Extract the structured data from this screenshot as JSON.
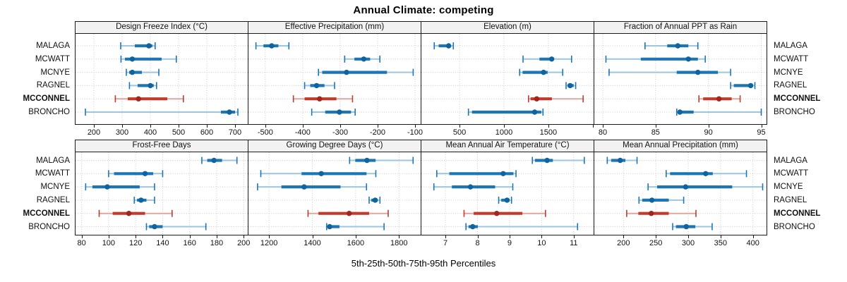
{
  "chart_data": {
    "type": "dotplot_percentile_intervals",
    "title": "Annual Climate: competing",
    "caption": "5th-25th-50th-75th-95th Percentiles",
    "stations": [
      "MALAGA",
      "MCWATT",
      "MCNYE",
      "RAGNEL",
      "MCCONNEL",
      "BRONCHO"
    ],
    "highlighted_station": "MCCONNEL",
    "percentiles": [
      "5th",
      "25th",
      "50th",
      "75th",
      "95th"
    ],
    "legend_position": "none",
    "grid": true,
    "colors": {
      "blue_line": "#9cc6e0",
      "blue_bar": "#1d76b4",
      "blue_dot": "#0f639e",
      "red_line": "#e5a49e",
      "red_bar": "#bf3b2e",
      "red_dot": "#9f271c",
      "grid": "#c9c9c9",
      "panel_header_bg": "#f2f2f2",
      "border": "#1a1a1a"
    },
    "panels": [
      {
        "title": "Design Freeze Index (°C)",
        "row": 0,
        "ticks": [
          200,
          300,
          400,
          500,
          600,
          700
        ],
        "extra_ticks": [],
        "xlim": [
          135,
          745
        ],
        "values": [
          [
            295,
            345,
            395,
            407,
            417
          ],
          [
            296,
            310,
            336,
            440,
            492
          ],
          [
            315,
            325,
            336,
            370,
            430
          ],
          [
            326,
            355,
            400,
            412,
            422
          ],
          [
            276,
            320,
            358,
            460,
            517
          ],
          [
            170,
            650,
            680,
            700,
            710
          ]
        ]
      },
      {
        "title": "Effective Precipitation (mm)",
        "row": 0,
        "ticks": [
          -500,
          -400,
          -300,
          -200,
          -100
        ],
        "extra_ticks": [],
        "xlim": [
          -545,
          -85
        ],
        "values": [
          [
            -525,
            -505,
            -483,
            -465,
            -437
          ],
          [
            -288,
            -262,
            -237,
            -220,
            -194
          ],
          [
            -358,
            -348,
            -283,
            -175,
            -105
          ],
          [
            -395,
            -380,
            -363,
            -342,
            -315
          ],
          [
            -425,
            -395,
            -355,
            -310,
            -267
          ],
          [
            -376,
            -340,
            -302,
            -271,
            -260
          ]
        ]
      },
      {
        "title": "Elevation (m)",
        "row": 0,
        "ticks": [
          500,
          1000,
          1500
        ],
        "extra_ticks": [
          2000
        ],
        "xlim": [
          70,
          2010
        ],
        "values": [
          [
            215,
            265,
            377,
            400,
            430
          ],
          [
            1215,
            1400,
            1538,
            1560,
            1762
          ],
          [
            1177,
            1210,
            1446,
            1492,
            1662
          ],
          [
            1700,
            1717,
            1746,
            1786,
            1808
          ],
          [
            1277,
            1300,
            1369,
            1540,
            1892
          ],
          [
            600,
            640,
            1346,
            1420,
            1440
          ]
        ]
      },
      {
        "title": "Fraction of Annual PPT as Rain",
        "row": 0,
        "ticks": [
          80,
          85,
          90,
          95
        ],
        "extra_ticks": [],
        "xlim": [
          79.2,
          95.5
        ],
        "values": [
          [
            84.0,
            86.1,
            87.1,
            88.1,
            89.0
          ],
          [
            80.3,
            83.6,
            88.1,
            89.0,
            89.7
          ],
          [
            80.6,
            87.0,
            89.0,
            90.9,
            92.1
          ],
          [
            92.1,
            92.4,
            94.0,
            94.2,
            94.4
          ],
          [
            89.1,
            89.5,
            91.0,
            92.2,
            93.0
          ],
          [
            87.0,
            87.1,
            87.3,
            88.6,
            95.0
          ]
        ]
      },
      {
        "title": "Frost-Free Days",
        "row": 1,
        "ticks": [
          80,
          100,
          120,
          140,
          160,
          180,
          200
        ],
        "extra_ticks": [],
        "xlim": [
          75.5,
          203
        ],
        "values": [
          [
            169,
            173,
            178,
            184,
            195
          ],
          [
            100,
            104,
            127,
            133,
            140
          ],
          [
            83,
            88,
            99,
            123,
            134
          ],
          [
            119,
            121,
            124,
            128,
            134
          ],
          [
            93,
            103,
            115,
            127,
            147
          ],
          [
            128,
            130,
            134,
            140,
            172
          ]
        ]
      },
      {
        "title": "Growing Degree Days (°C)",
        "row": 1,
        "ticks": [
          1200,
          1400,
          1600,
          1800
        ],
        "extra_ticks": [],
        "xlim": [
          1105,
          1900
        ],
        "values": [
          [
            1572,
            1598,
            1652,
            1692,
            1865
          ],
          [
            1162,
            1350,
            1441,
            1650,
            1693
          ],
          [
            1147,
            1257,
            1362,
            1530,
            1650
          ],
          [
            1662,
            1672,
            1690,
            1702,
            1712
          ],
          [
            1380,
            1428,
            1570,
            1662,
            1750
          ],
          [
            1466,
            1471,
            1480,
            1525,
            1731
          ]
        ]
      },
      {
        "title": "Mean Annual Air Temperature (°C)",
        "row": 1,
        "ticks": [
          7,
          8,
          9,
          10,
          11
        ],
        "extra_ticks": [],
        "xlim": [
          6.25,
          11.62
        ],
        "values": [
          [
            9.71,
            9.79,
            10.17,
            10.35,
            11.33
          ],
          [
            6.73,
            7.12,
            8.8,
            9.12,
            9.2
          ],
          [
            6.64,
            7.2,
            7.78,
            8.55,
            9.1
          ],
          [
            8.66,
            8.74,
            8.92,
            9.0,
            9.06
          ],
          [
            7.58,
            7.88,
            8.6,
            9.4,
            10.12
          ],
          [
            7.64,
            7.72,
            7.85,
            8.01,
            11.12
          ]
        ]
      },
      {
        "title": "Mean Annual Precipitation (mm)",
        "row": 1,
        "ticks": [
          200,
          250,
          300,
          350,
          400
        ],
        "extra_ticks": [],
        "xlim": [
          155,
          421
        ],
        "values": [
          [
            175,
            181,
            195,
            203,
            221
          ],
          [
            266,
            272,
            327,
            338,
            390
          ],
          [
            238,
            252,
            296,
            368,
            415
          ],
          [
            224,
            229,
            244,
            270,
            293
          ],
          [
            205,
            223,
            243,
            270,
            312
          ],
          [
            276,
            281,
            297,
            311,
            337
          ]
        ]
      }
    ]
  }
}
